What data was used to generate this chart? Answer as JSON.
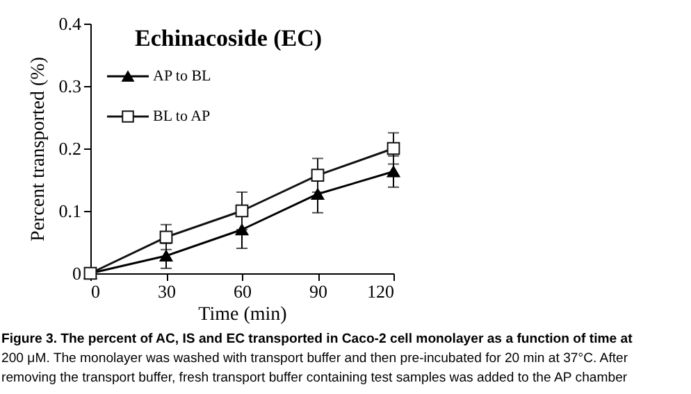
{
  "chart_data": {
    "type": "line",
    "title": "Echinacoside (EC)",
    "xlabel": "Time (min)",
    "ylabel": "Percent transported (%)",
    "x": [
      0,
      30,
      60,
      90,
      120
    ],
    "series": [
      {
        "name": "AP to BL",
        "color": "#000000",
        "marker": "triangle",
        "values": [
          0,
          0.028,
          0.07,
          0.127,
          0.163
        ],
        "errors": [
          0,
          0.02,
          0.03,
          0.03,
          0.025
        ]
      },
      {
        "name": "BL to AP",
        "color": "#111111",
        "marker": "square",
        "values": [
          0,
          0.058,
          0.1,
          0.157,
          0.2
        ],
        "errors": [
          0,
          0.02,
          0.03,
          0.027,
          0.025
        ]
      }
    ],
    "xlim": [
      0,
      120
    ],
    "xticks": [
      0,
      30,
      60,
      90,
      120
    ],
    "ylim": [
      0,
      0.4
    ],
    "yticks": [
      0,
      0.1,
      0.2,
      0.3,
      0.4
    ],
    "grid": false,
    "legend": "top left",
    "line_style": "solid",
    "annotations": [
      "Figure 3. The percent of AC, IS and EC transported in Caco-2 cell monolayer as a function of time at",
      "200 μM. The monolayer was washed with transport buffer and then pre-incubated for 20 min at 37°C. After",
      "removing the transport buffer, fresh transport buffer containing test samples was added to the AP chamber"
    ]
  }
}
